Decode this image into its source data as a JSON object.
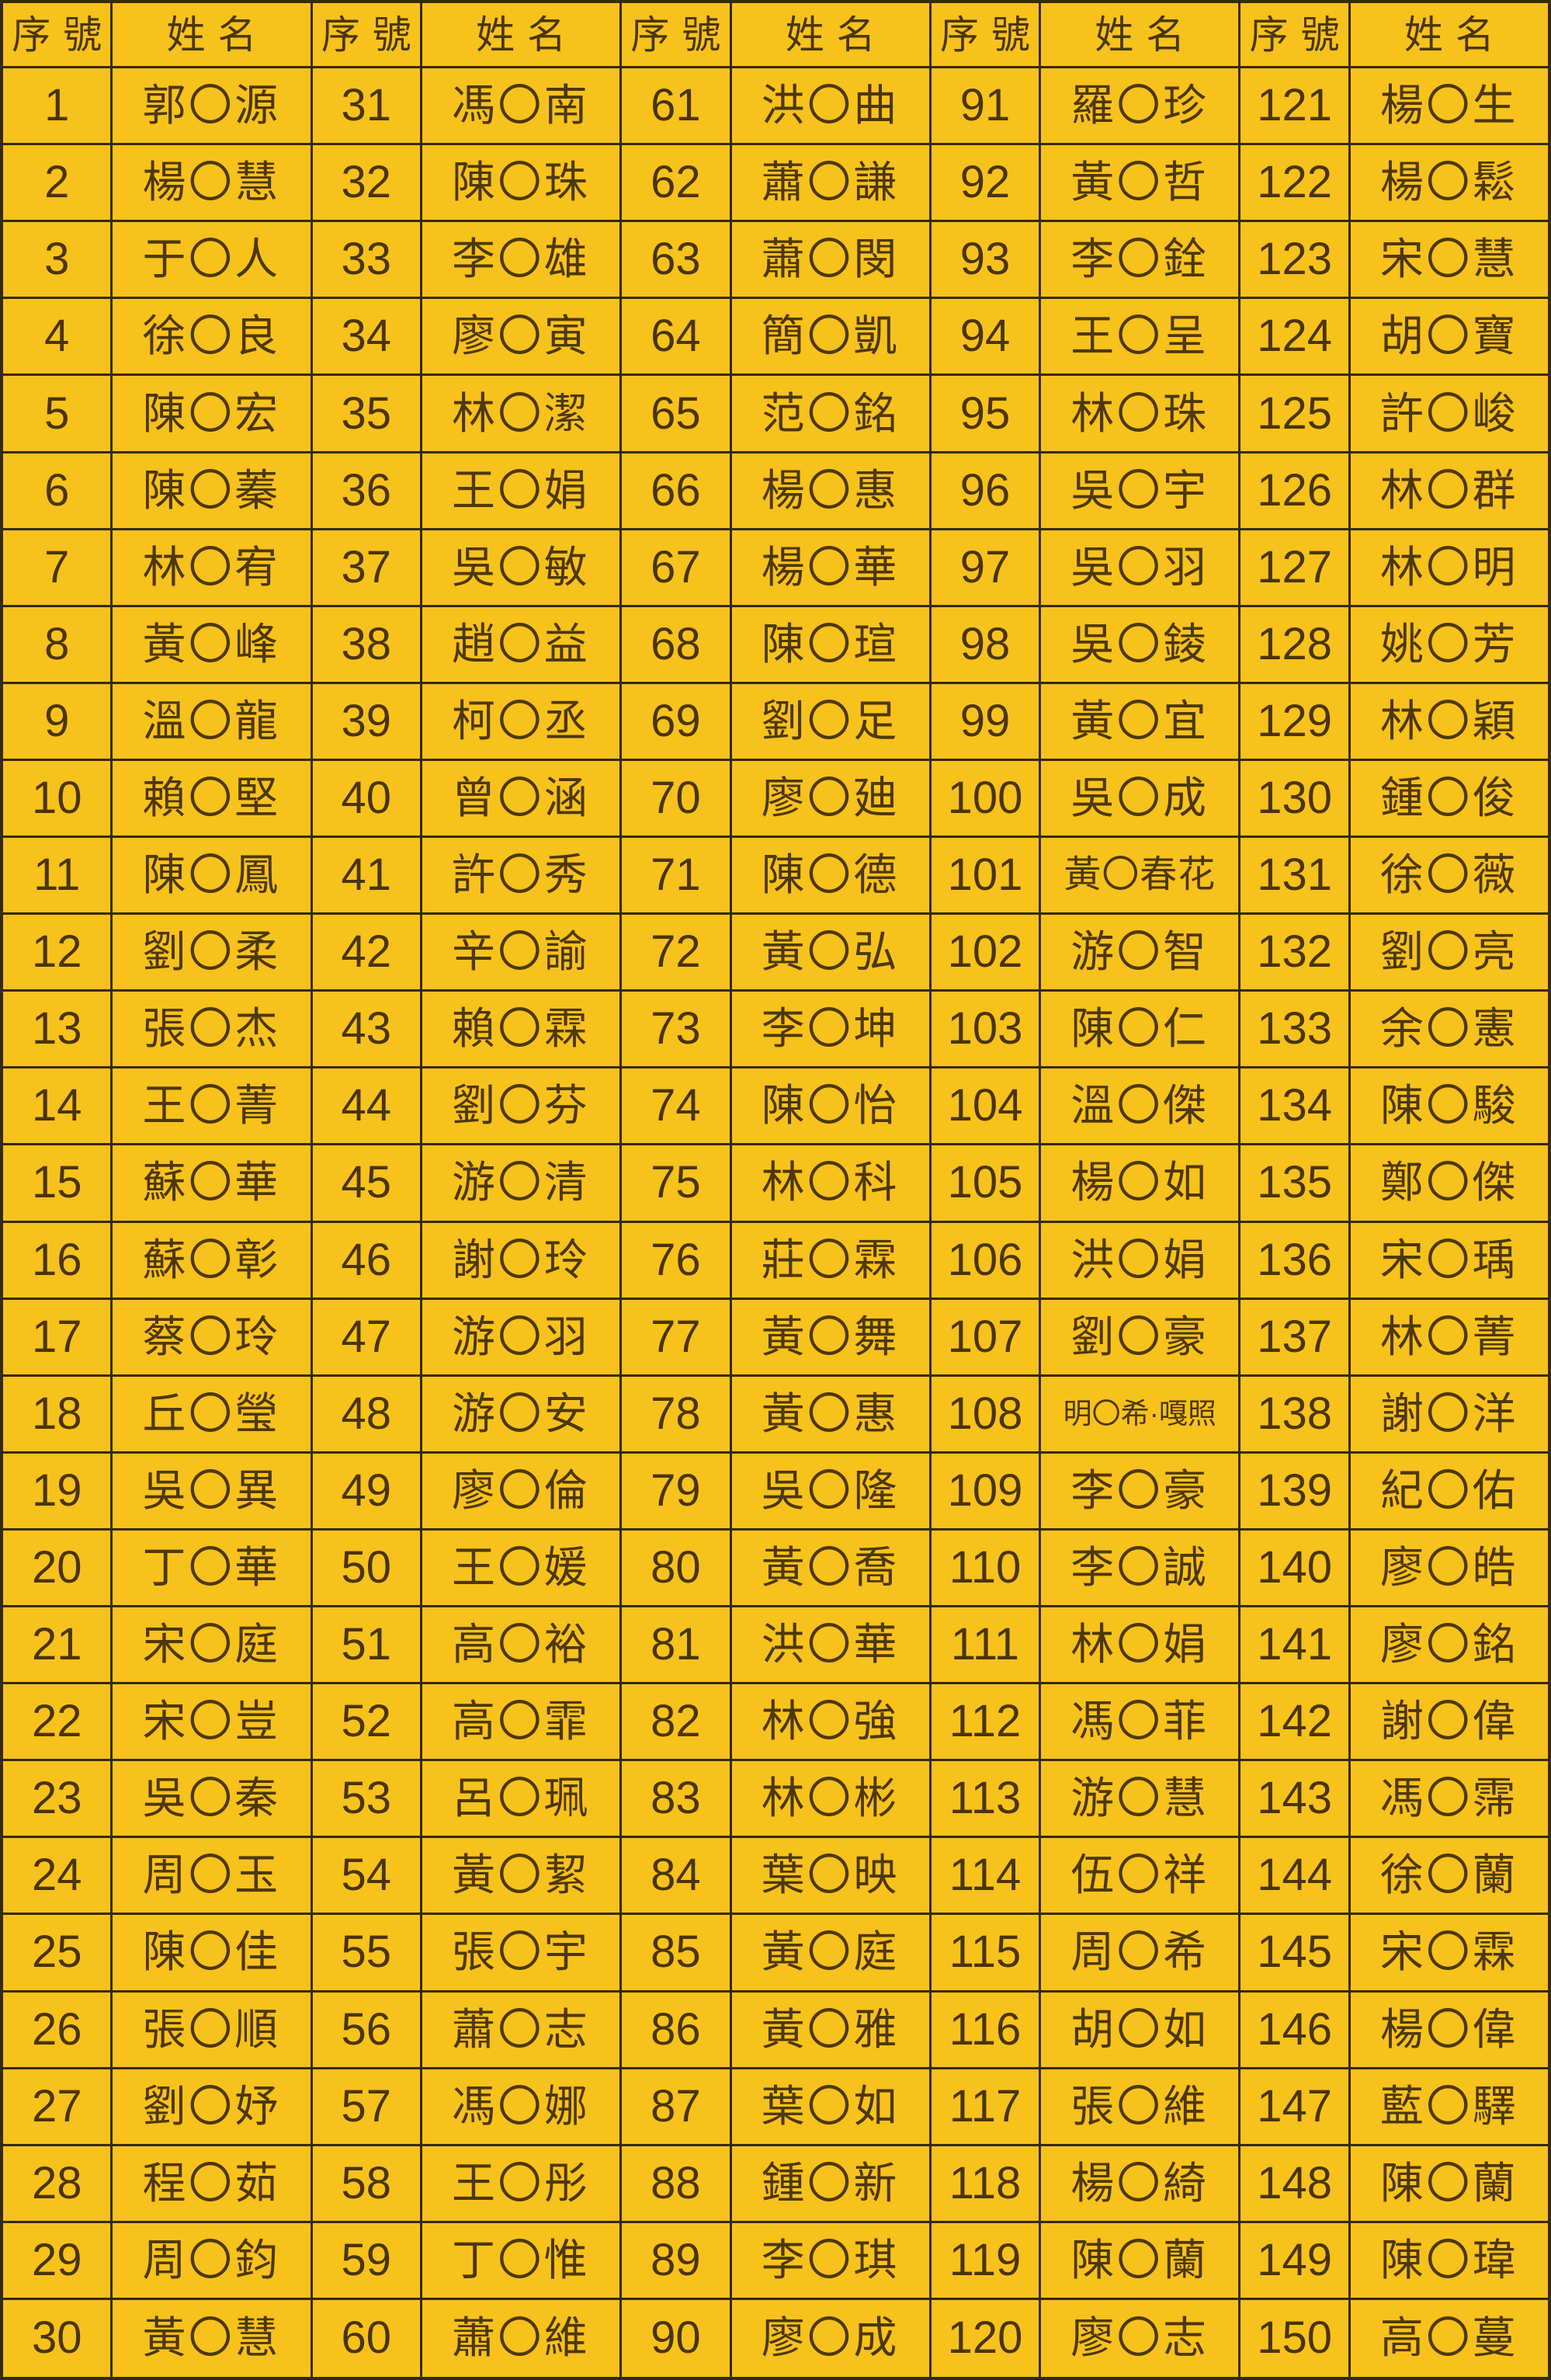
{
  "colors": {
    "background": "#f8c21d",
    "grid_line": "#362a0c",
    "text": "#4d3806"
  },
  "table": {
    "header": {
      "serial": "序號",
      "name": "姓名"
    },
    "placeholder_char": "〇",
    "groups": [
      {
        "rows": [
          {
            "no": "1",
            "name": "郭〇源"
          },
          {
            "no": "2",
            "name": "楊〇慧"
          },
          {
            "no": "3",
            "name": "于〇人"
          },
          {
            "no": "4",
            "name": "徐〇良"
          },
          {
            "no": "5",
            "name": "陳〇宏"
          },
          {
            "no": "6",
            "name": "陳〇蓁"
          },
          {
            "no": "7",
            "name": "林〇宥"
          },
          {
            "no": "8",
            "name": "黃〇峰"
          },
          {
            "no": "9",
            "name": "溫〇龍"
          },
          {
            "no": "10",
            "name": "賴〇堅"
          },
          {
            "no": "11",
            "name": "陳〇鳳"
          },
          {
            "no": "12",
            "name": "劉〇柔"
          },
          {
            "no": "13",
            "name": "張〇杰"
          },
          {
            "no": "14",
            "name": "王〇菁"
          },
          {
            "no": "15",
            "name": "蘇〇華"
          },
          {
            "no": "16",
            "name": "蘇〇彰"
          },
          {
            "no": "17",
            "name": "蔡〇玲"
          },
          {
            "no": "18",
            "name": "丘〇瑩"
          },
          {
            "no": "19",
            "name": "吳〇異"
          },
          {
            "no": "20",
            "name": "丁〇華"
          },
          {
            "no": "21",
            "name": "宋〇庭"
          },
          {
            "no": "22",
            "name": "宋〇豈"
          },
          {
            "no": "23",
            "name": "吳〇秦"
          },
          {
            "no": "24",
            "name": "周〇玉"
          },
          {
            "no": "25",
            "name": "陳〇佳"
          },
          {
            "no": "26",
            "name": "張〇順"
          },
          {
            "no": "27",
            "name": "劉〇妤"
          },
          {
            "no": "28",
            "name": "程〇茹"
          },
          {
            "no": "29",
            "name": "周〇鈞"
          },
          {
            "no": "30",
            "name": "黃〇慧"
          }
        ]
      },
      {
        "rows": [
          {
            "no": "31",
            "name": "馮〇南"
          },
          {
            "no": "32",
            "name": "陳〇珠"
          },
          {
            "no": "33",
            "name": "李〇雄"
          },
          {
            "no": "34",
            "name": "廖〇寅"
          },
          {
            "no": "35",
            "name": "林〇潔"
          },
          {
            "no": "36",
            "name": "王〇娟"
          },
          {
            "no": "37",
            "name": "吳〇敏"
          },
          {
            "no": "38",
            "name": "趙〇益"
          },
          {
            "no": "39",
            "name": "柯〇丞"
          },
          {
            "no": "40",
            "name": "曾〇涵"
          },
          {
            "no": "41",
            "name": "許〇秀"
          },
          {
            "no": "42",
            "name": "辛〇諭"
          },
          {
            "no": "43",
            "name": "賴〇霖"
          },
          {
            "no": "44",
            "name": "劉〇芬"
          },
          {
            "no": "45",
            "name": "游〇清"
          },
          {
            "no": "46",
            "name": "謝〇玲"
          },
          {
            "no": "47",
            "name": "游〇羽"
          },
          {
            "no": "48",
            "name": "游〇安"
          },
          {
            "no": "49",
            "name": "廖〇倫"
          },
          {
            "no": "50",
            "name": "王〇媛"
          },
          {
            "no": "51",
            "name": "高〇裕"
          },
          {
            "no": "52",
            "name": "高〇霏"
          },
          {
            "no": "53",
            "name": "呂〇珮"
          },
          {
            "no": "54",
            "name": "黃〇絜"
          },
          {
            "no": "55",
            "name": "張〇宇"
          },
          {
            "no": "56",
            "name": "蕭〇志"
          },
          {
            "no": "57",
            "name": "馮〇娜"
          },
          {
            "no": "58",
            "name": "王〇彤"
          },
          {
            "no": "59",
            "name": "丁〇惟"
          },
          {
            "no": "60",
            "name": "蕭〇維"
          }
        ]
      },
      {
        "rows": [
          {
            "no": "61",
            "name": "洪〇曲"
          },
          {
            "no": "62",
            "name": "蕭〇謙"
          },
          {
            "no": "63",
            "name": "蕭〇閔"
          },
          {
            "no": "64",
            "name": "簡〇凱"
          },
          {
            "no": "65",
            "name": "范〇銘"
          },
          {
            "no": "66",
            "name": "楊〇惠"
          },
          {
            "no": "67",
            "name": "楊〇華"
          },
          {
            "no": "68",
            "name": "陳〇瑄"
          },
          {
            "no": "69",
            "name": "劉〇足"
          },
          {
            "no": "70",
            "name": "廖〇廸"
          },
          {
            "no": "71",
            "name": "陳〇德"
          },
          {
            "no": "72",
            "name": "黃〇弘"
          },
          {
            "no": "73",
            "name": "李〇坤"
          },
          {
            "no": "74",
            "name": "陳〇怡"
          },
          {
            "no": "75",
            "name": "林〇科"
          },
          {
            "no": "76",
            "name": "莊〇霖"
          },
          {
            "no": "77",
            "name": "黃〇舞"
          },
          {
            "no": "78",
            "name": "黃〇惠"
          },
          {
            "no": "79",
            "name": "吳〇隆"
          },
          {
            "no": "80",
            "name": "黃〇喬"
          },
          {
            "no": "81",
            "name": "洪〇華"
          },
          {
            "no": "82",
            "name": "林〇強"
          },
          {
            "no": "83",
            "name": "林〇彬"
          },
          {
            "no": "84",
            "name": "葉〇映"
          },
          {
            "no": "85",
            "name": "黃〇庭"
          },
          {
            "no": "86",
            "name": "黃〇雅"
          },
          {
            "no": "87",
            "name": "葉〇如"
          },
          {
            "no": "88",
            "name": "鍾〇新"
          },
          {
            "no": "89",
            "name": "李〇琪"
          },
          {
            "no": "90",
            "name": "廖〇成"
          }
        ]
      },
      {
        "rows": [
          {
            "no": "91",
            "name": "羅〇珍"
          },
          {
            "no": "92",
            "name": "黃〇哲"
          },
          {
            "no": "93",
            "name": "李〇銓"
          },
          {
            "no": "94",
            "name": "王〇呈"
          },
          {
            "no": "95",
            "name": "林〇珠"
          },
          {
            "no": "96",
            "name": "吳〇宇"
          },
          {
            "no": "97",
            "name": "吳〇羽"
          },
          {
            "no": "98",
            "name": "吳〇錂"
          },
          {
            "no": "99",
            "name": "黃〇宜"
          },
          {
            "no": "100",
            "name": "吳〇成"
          },
          {
            "no": "101",
            "name": "黃〇春花"
          },
          {
            "no": "102",
            "name": "游〇智"
          },
          {
            "no": "103",
            "name": "陳〇仁"
          },
          {
            "no": "104",
            "name": "溫〇傑"
          },
          {
            "no": "105",
            "name": "楊〇如"
          },
          {
            "no": "106",
            "name": "洪〇娟"
          },
          {
            "no": "107",
            "name": "劉〇豪"
          },
          {
            "no": "108",
            "name": "明〇希·嘎照"
          },
          {
            "no": "109",
            "name": "李〇豪"
          },
          {
            "no": "110",
            "name": "李〇誠"
          },
          {
            "no": "111",
            "name": "林〇娟"
          },
          {
            "no": "112",
            "name": "馮〇菲"
          },
          {
            "no": "113",
            "name": "游〇慧"
          },
          {
            "no": "114",
            "name": "伍〇祥"
          },
          {
            "no": "115",
            "name": "周〇希"
          },
          {
            "no": "116",
            "name": "胡〇如"
          },
          {
            "no": "117",
            "name": "張〇維"
          },
          {
            "no": "118",
            "name": "楊〇綺"
          },
          {
            "no": "119",
            "name": "陳〇蘭"
          },
          {
            "no": "120",
            "name": "廖〇志"
          }
        ]
      },
      {
        "rows": [
          {
            "no": "121",
            "name": "楊〇生"
          },
          {
            "no": "122",
            "name": "楊〇鬆"
          },
          {
            "no": "123",
            "name": "宋〇慧"
          },
          {
            "no": "124",
            "name": "胡〇寶"
          },
          {
            "no": "125",
            "name": "許〇峻"
          },
          {
            "no": "126",
            "name": "林〇群"
          },
          {
            "no": "127",
            "name": "林〇明"
          },
          {
            "no": "128",
            "name": "姚〇芳"
          },
          {
            "no": "129",
            "name": "林〇穎"
          },
          {
            "no": "130",
            "name": "鍾〇俊"
          },
          {
            "no": "131",
            "name": "徐〇薇"
          },
          {
            "no": "132",
            "name": "劉〇亮"
          },
          {
            "no": "133",
            "name": "余〇憲"
          },
          {
            "no": "134",
            "name": "陳〇駿"
          },
          {
            "no": "135",
            "name": "鄭〇傑"
          },
          {
            "no": "136",
            "name": "宋〇瑀"
          },
          {
            "no": "137",
            "name": "林〇菁"
          },
          {
            "no": "138",
            "name": "謝〇洋"
          },
          {
            "no": "139",
            "name": "紀〇佑"
          },
          {
            "no": "140",
            "name": "廖〇皓"
          },
          {
            "no": "141",
            "name": "廖〇銘"
          },
          {
            "no": "142",
            "name": "謝〇偉"
          },
          {
            "no": "143",
            "name": "馮〇霈"
          },
          {
            "no": "144",
            "name": "徐〇蘭"
          },
          {
            "no": "145",
            "name": "宋〇霖"
          },
          {
            "no": "146",
            "name": "楊〇偉"
          },
          {
            "no": "147",
            "name": "藍〇驛"
          },
          {
            "no": "148",
            "name": "陳〇蘭"
          },
          {
            "no": "149",
            "name": "陳〇瑋"
          },
          {
            "no": "150",
            "name": "高〇蔓"
          }
        ]
      }
    ]
  }
}
